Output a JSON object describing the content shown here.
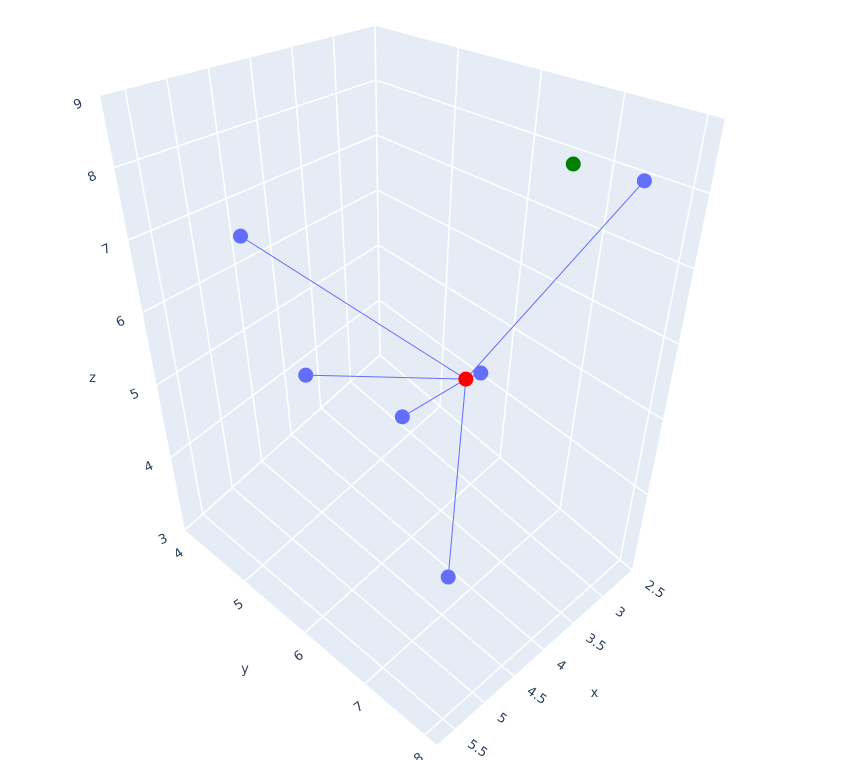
{
  "chart_data": {
    "type": "scatter3d",
    "x_label": "x",
    "y_label": "y",
    "z_label": "z",
    "xlim": [
      2.5,
      5.8
    ],
    "ylim": [
      4,
      8.2
    ],
    "zlim": [
      3,
      9
    ],
    "xticks": [
      2.5,
      3,
      3.5,
      4,
      4.5,
      5,
      5.5
    ],
    "yticks": [
      4,
      5,
      6,
      7,
      8
    ],
    "zticks": [
      3,
      4,
      5,
      6,
      7,
      8,
      9
    ],
    "grid": true,
    "series": [
      {
        "mode": "lines",
        "color": "#636efa",
        "x": [
          3.93,
          5.58,
          null,
          3.93,
          4.59,
          null,
          3.93,
          3.57,
          null,
          3.93,
          4.24,
          null,
          3.93,
          4.27,
          null,
          3.93,
          2.68
        ],
        "y": [
          6.68,
          5.32,
          null,
          6.68,
          5.0,
          null,
          6.68,
          5.42,
          null,
          6.68,
          6.84,
          null,
          6.68,
          7.2,
          null,
          6.68,
          7.56
        ],
        "z": [
          5.5,
          7.5,
          null,
          5.5,
          5,
          null,
          5.5,
          4,
          null,
          5.5,
          3.2,
          null,
          5.5,
          6,
          null,
          5.5,
          8
        ]
      },
      {
        "mode": "markers",
        "color": "#636efa",
        "x": [
          5.58,
          4.59,
          3.57,
          4.24,
          4.27,
          2.68
        ],
        "y": [
          5.32,
          5.0,
          5.42,
          6.84,
          7.2,
          7.56
        ],
        "z": [
          7.5,
          5,
          4,
          3.2,
          6,
          8
        ]
      },
      {
        "mode": "markers",
        "color": "red",
        "x": [
          3.93
        ],
        "y": [
          6.68
        ],
        "z": [
          5.5
        ]
      },
      {
        "mode": "markers",
        "color": "green",
        "x": [
          3.57
        ],
        "y": [
          7.5
        ],
        "z": [
          8.5
        ]
      }
    ]
  }
}
